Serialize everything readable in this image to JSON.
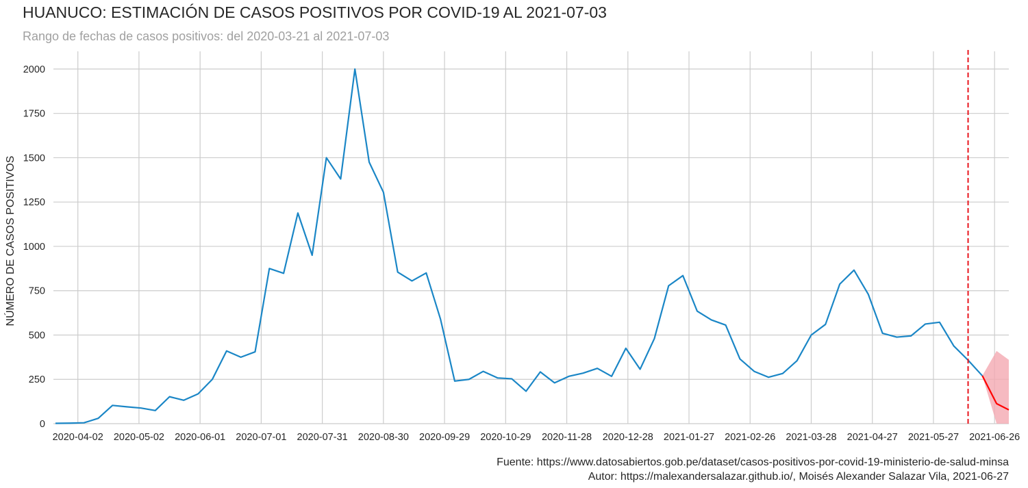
{
  "header": {
    "title": "HUANUCO: ESTIMACIÓN DE CASOS POSITIVOS POR COVID-19 AL 2021-07-03",
    "subtitle": "Rango de fechas de casos positivos: del 2020-03-21 al 2021-07-03"
  },
  "footer": {
    "source": "Fuente: https://www.datosabiertos.gob.pe/dataset/casos-positivos-por-covid-19-ministerio-de-salud-minsa",
    "author": "Autor: https://malexandersalazar.github.io/, Moisés Alexander Salazar Vila, 2021-06-27"
  },
  "chart_data": {
    "type": "line",
    "title": "HUANUCO: ESTIMACIÓN DE CASOS POSITIVOS POR COVID-19 AL 2021-07-03",
    "xlabel": "",
    "ylabel": "NÚMERO DE CASOS POSITIVOS",
    "ylim": [
      0,
      2100
    ],
    "xlim": [
      "2020-03-21",
      "2021-07-03"
    ],
    "x_tick_labels": [
      "2020-04-02",
      "2020-05-02",
      "2020-06-01",
      "2020-07-01",
      "2020-07-31",
      "2020-08-30",
      "2020-09-29",
      "2020-10-29",
      "2020-11-28",
      "2020-12-28",
      "2021-01-27",
      "2021-02-26",
      "2021-03-28",
      "2021-04-27",
      "2021-05-27",
      "2021-06-26"
    ],
    "y_ticks": [
      0,
      250,
      500,
      750,
      1000,
      1250,
      1500,
      1750,
      2000
    ],
    "grid": true,
    "colors": {
      "observed": "#1a86c6",
      "forecast": "#ff0000",
      "band": "#f4a9b2",
      "cutoff": "#e8141c"
    },
    "cutoff_date": "2021-06-13",
    "series": [
      {
        "values": [
          {
            "x": "2020-03-22",
            "y": 2
          },
          {
            "x": "2020-03-29",
            "y": 3
          },
          {
            "x": "2020-04-05",
            "y": 5
          },
          {
            "x": "2020-04-12",
            "y": 30
          },
          {
            "x": "2020-04-19",
            "y": 103
          },
          {
            "x": "2020-04-26",
            "y": 95
          },
          {
            "x": "2020-05-03",
            "y": 88
          },
          {
            "x": "2020-05-10",
            "y": 74
          },
          {
            "x": "2020-05-17",
            "y": 152
          },
          {
            "x": "2020-05-24",
            "y": 132
          },
          {
            "x": "2020-05-31",
            "y": 168
          },
          {
            "x": "2020-06-07",
            "y": 250
          },
          {
            "x": "2020-06-14",
            "y": 410
          },
          {
            "x": "2020-06-21",
            "y": 375
          },
          {
            "x": "2020-06-28",
            "y": 405
          },
          {
            "x": "2020-07-05",
            "y": 875
          },
          {
            "x": "2020-07-12",
            "y": 848
          },
          {
            "x": "2020-07-19",
            "y": 1188
          },
          {
            "x": "2020-07-26",
            "y": 950
          },
          {
            "x": "2020-08-02",
            "y": 1500
          },
          {
            "x": "2020-08-09",
            "y": 1380
          },
          {
            "x": "2020-08-16",
            "y": 2000
          },
          {
            "x": "2020-08-23",
            "y": 1475
          },
          {
            "x": "2020-08-30",
            "y": 1305
          },
          {
            "x": "2020-09-06",
            "y": 855
          },
          {
            "x": "2020-09-13",
            "y": 805
          },
          {
            "x": "2020-09-20",
            "y": 850
          },
          {
            "x": "2020-09-27",
            "y": 590
          },
          {
            "x": "2020-10-04",
            "y": 240
          },
          {
            "x": "2020-10-11",
            "y": 250
          },
          {
            "x": "2020-10-18",
            "y": 295
          },
          {
            "x": "2020-10-25",
            "y": 258
          },
          {
            "x": "2020-11-01",
            "y": 253
          },
          {
            "x": "2020-11-08",
            "y": 183
          },
          {
            "x": "2020-11-15",
            "y": 292
          },
          {
            "x": "2020-11-22",
            "y": 230
          },
          {
            "x": "2020-11-29",
            "y": 267
          },
          {
            "x": "2020-12-06",
            "y": 285
          },
          {
            "x": "2020-12-13",
            "y": 312
          },
          {
            "x": "2020-12-20",
            "y": 267
          },
          {
            "x": "2020-12-27",
            "y": 425
          },
          {
            "x": "2021-01-03",
            "y": 307
          },
          {
            "x": "2021-01-10",
            "y": 480
          },
          {
            "x": "2021-01-17",
            "y": 778
          },
          {
            "x": "2021-01-24",
            "y": 835
          },
          {
            "x": "2021-01-31",
            "y": 635
          },
          {
            "x": "2021-02-07",
            "y": 585
          },
          {
            "x": "2021-02-14",
            "y": 556
          },
          {
            "x": "2021-02-21",
            "y": 365
          },
          {
            "x": "2021-02-28",
            "y": 295
          },
          {
            "x": "2021-03-07",
            "y": 262
          },
          {
            "x": "2021-03-14",
            "y": 283
          },
          {
            "x": "2021-03-21",
            "y": 355
          },
          {
            "x": "2021-03-28",
            "y": 500
          },
          {
            "x": "2021-04-04",
            "y": 560
          },
          {
            "x": "2021-04-11",
            "y": 787
          },
          {
            "x": "2021-04-18",
            "y": 866
          },
          {
            "x": "2021-04-25",
            "y": 730
          },
          {
            "x": "2021-05-02",
            "y": 510
          },
          {
            "x": "2021-05-09",
            "y": 488
          },
          {
            "x": "2021-05-16",
            "y": 495
          },
          {
            "x": "2021-05-23",
            "y": 562
          },
          {
            "x": "2021-05-30",
            "y": 572
          },
          {
            "x": "2021-06-06",
            "y": 438
          },
          {
            "x": "2021-06-13",
            "y": 358
          },
          {
            "x": "2021-06-20",
            "y": 270
          }
        ]
      },
      {
        "values": [
          {
            "x": "2021-06-20",
            "y": 270
          },
          {
            "x": "2021-06-27",
            "y": 113
          },
          {
            "x": "2021-07-03",
            "y": 78
          }
        ],
        "band": [
          {
            "x": "2021-06-20",
            "lo": 270,
            "hi": 270
          },
          {
            "x": "2021-06-27",
            "lo": 0,
            "hi": 410
          },
          {
            "x": "2021-07-03",
            "lo": 0,
            "hi": 360
          }
        ]
      }
    ]
  }
}
